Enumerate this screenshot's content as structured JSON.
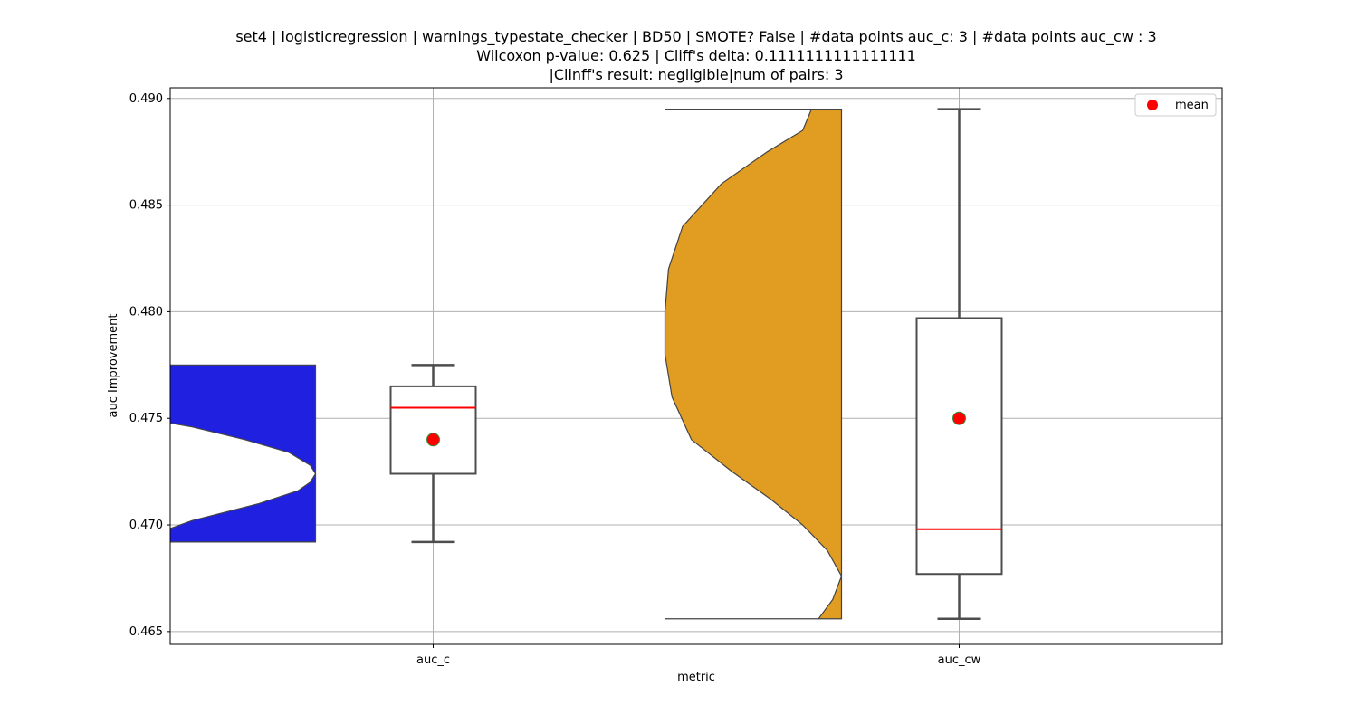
{
  "chart_data": {
    "type": "box+violin",
    "title_lines": [
      "set4 | logisticregression | warnings_typestate_checker | BD50 | SMOTE? False | #data points auc_c: 3 | #data points auc_cw : 3",
      "Wilcoxon p-value: 0.625 | Cliff's delta: 0.1111111111111111",
      "|Clinff's result: negligible|num of pairs: 3"
    ],
    "xlabel": "metric",
    "ylabel": "auc Improvement",
    "categories": [
      "auc_c",
      "auc_cw"
    ],
    "ylim": [
      0.4644,
      0.4905
    ],
    "yticks": [
      0.465,
      0.47,
      0.475,
      0.48,
      0.485,
      0.49
    ],
    "ytick_labels": [
      "0.465",
      "0.470",
      "0.475",
      "0.480",
      "0.485",
      "0.490"
    ],
    "grid": true,
    "legend": {
      "position": "top-right",
      "entries": [
        "mean"
      ]
    },
    "series": [
      {
        "category": "auc_c",
        "violin_color": "#2020e0",
        "box": {
          "whisker_low": 0.4692,
          "q1": 0.4724,
          "median": 0.4755,
          "q3": 0.4765,
          "whisker_high": 0.4775,
          "mean": 0.474
        },
        "violin": {
          "ymin": 0.4692,
          "ymax": 0.4775,
          "density": [
            [
              0.4692,
              0.0
            ],
            [
              0.4696,
              0.1
            ],
            [
              0.4702,
              0.3
            ],
            [
              0.471,
              0.68
            ],
            [
              0.4716,
              0.9
            ],
            [
              0.472,
              0.97
            ],
            [
              0.4724,
              1.0
            ],
            [
              0.4728,
              0.97
            ],
            [
              0.4734,
              0.85
            ],
            [
              0.474,
              0.6
            ],
            [
              0.4746,
              0.3
            ],
            [
              0.475,
              0.02
            ],
            [
              0.4755,
              0.0
            ],
            [
              0.4775,
              0.0
            ]
          ]
        }
      },
      {
        "category": "auc_cw",
        "violin_color": "#e09d22",
        "box": {
          "whisker_low": 0.4656,
          "q1": 0.4677,
          "median": 0.4698,
          "q3": 0.4797,
          "whisker_high": 0.4895,
          "mean": 0.475
        },
        "violin": {
          "ymin": 0.4656,
          "ymax": 0.4895,
          "density": [
            [
              0.4656,
              0.87
            ],
            [
              0.4665,
              0.95
            ],
            [
              0.4676,
              1.0
            ],
            [
              0.4688,
              0.92
            ],
            [
              0.47,
              0.78
            ],
            [
              0.4712,
              0.6
            ],
            [
              0.4725,
              0.38
            ],
            [
              0.474,
              0.15
            ],
            [
              0.476,
              0.04
            ],
            [
              0.478,
              0.0
            ],
            [
              0.48,
              0.0
            ],
            [
              0.482,
              0.02
            ],
            [
              0.484,
              0.1
            ],
            [
              0.486,
              0.32
            ],
            [
              0.4875,
              0.58
            ],
            [
              0.4885,
              0.78
            ],
            [
              0.4895,
              0.83
            ]
          ]
        }
      }
    ]
  }
}
